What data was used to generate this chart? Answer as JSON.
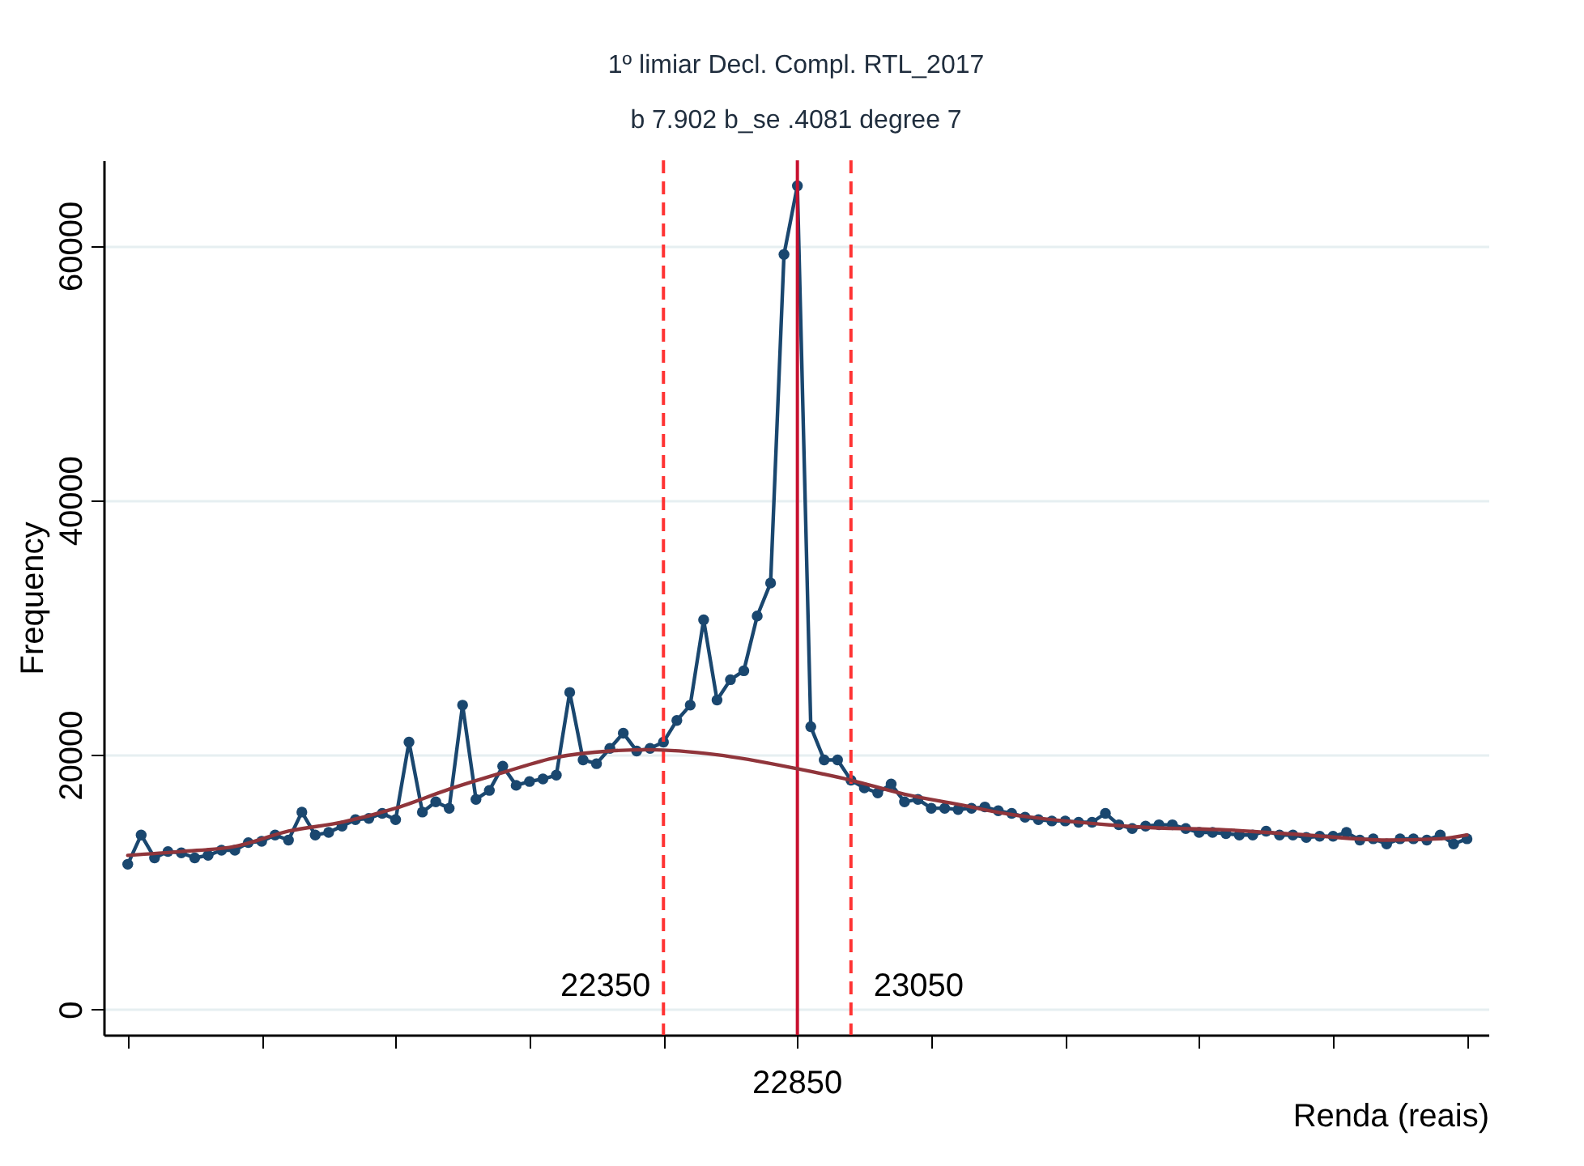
{
  "chart_data": {
    "type": "line",
    "title": "1º limiar  Decl. Compl.  RTL_2017",
    "subtitle": "b 7.902 b_se .4081 degree 7",
    "xlabel": "Renda (reais)",
    "ylabel": "Frequency",
    "x": [
      20350,
      20400,
      20450,
      20500,
      20550,
      20600,
      20650,
      20700,
      20750,
      20800,
      20850,
      20900,
      20950,
      21000,
      21050,
      21100,
      21150,
      21200,
      21250,
      21300,
      21350,
      21400,
      21450,
      21500,
      21550,
      21600,
      21650,
      21700,
      21750,
      21800,
      21850,
      21900,
      21950,
      22000,
      22050,
      22100,
      22150,
      22200,
      22250,
      22300,
      22350,
      22400,
      22450,
      22500,
      22550,
      22600,
      22650,
      22700,
      22750,
      22800,
      22850,
      22900,
      22950,
      23000,
      23050,
      23100,
      23150,
      23200,
      23250,
      23300,
      23350,
      23400,
      23450,
      23500,
      23550,
      23600,
      23650,
      23700,
      23750,
      23800,
      23850,
      23900,
      23950,
      24000,
      24050,
      24100,
      24150,
      24200,
      24250,
      24300,
      24350,
      24400,
      24450,
      24500,
      24550,
      24600,
      24650,
      24700,
      24750,
      24800,
      24850,
      24900,
      24950,
      25000,
      25050,
      25100,
      25150,
      25200,
      25250,
      25300,
      25350
    ],
    "series": [
      {
        "color": "#1a476f",
        "marker": "circle",
        "values": [
          11400,
          13700,
          11900,
          12400,
          12300,
          11900,
          12100,
          12500,
          12500,
          13100,
          13200,
          13700,
          13300,
          15500,
          13700,
          13900,
          14400,
          14900,
          15000,
          15400,
          14900,
          21000,
          15500,
          16300,
          15800,
          23900,
          16500,
          17200,
          19100,
          17600,
          17900,
          18100,
          18400,
          24900,
          19600,
          19300,
          20500,
          21700,
          20300,
          20500,
          21000,
          22700,
          23900,
          30600,
          24300,
          25900,
          26600,
          30900,
          33500,
          59300,
          64700,
          22200,
          19600,
          19600,
          18000,
          17400,
          17000,
          17700,
          16300,
          16500,
          15800,
          15800,
          15700,
          15800,
          15900,
          15600,
          15400,
          15100,
          14900,
          14800,
          14800,
          14700,
          14700,
          15400,
          14500,
          14200,
          14400,
          14500,
          14500,
          14200,
          13900,
          13900,
          13800,
          13700,
          13700,
          14000,
          13700,
          13700,
          13500,
          13600,
          13600,
          13900,
          13300,
          13400,
          13000,
          13400,
          13400,
          13300,
          13700,
          13000,
          13400
        ]
      },
      {
        "color": "#90353b",
        "marker": "none",
        "x": [
          20350,
          20550,
          20750,
          20950,
          21150,
          21350,
          21550,
          21750,
          21950,
          22150,
          22300,
          22550,
          22850,
          23050,
          23250,
          23450,
          23650,
          23850,
          24150,
          24450,
          24750,
          25050,
          25250,
          25350
        ],
        "values": [
          12100,
          12400,
          12800,
          14000,
          14700,
          15800,
          17300,
          18600,
          19800,
          20300,
          20400,
          20000,
          18900,
          18000,
          16900,
          16100,
          15300,
          14800,
          14300,
          14100,
          13700,
          13300,
          13400,
          13700
        ]
      }
    ],
    "xlim": [
      20260,
      25430
    ],
    "xticks": [
      {
        "value": 20350,
        "label": null
      },
      {
        "value": 20850,
        "label": null
      },
      {
        "value": 21350,
        "label": null
      },
      {
        "value": 21850,
        "label": null
      },
      {
        "value": 22350,
        "label": null
      },
      {
        "value": 22850,
        "label": null
      },
      {
        "value": 23350,
        "label": null
      },
      {
        "value": 23850,
        "label": null
      },
      {
        "value": 24350,
        "label": null
      },
      {
        "value": 24850,
        "label": null
      },
      {
        "value": 25350,
        "label": null
      }
    ],
    "ylim": [
      -2000,
      66700
    ],
    "yticks": [
      0,
      20000,
      40000,
      60000
    ],
    "grid": "y",
    "line_style": "solid",
    "tick_labels": "y",
    "ref_lines": [
      {
        "axis": "x",
        "value": 22350,
        "label": "22350",
        "color": "#ff3333",
        "line_style": "dashed"
      },
      {
        "axis": "x",
        "value": 23050,
        "label": "23050",
        "color": "#ff3333",
        "line_style": "dashed"
      },
      {
        "axis": "x",
        "value": 22850,
        "label": "22850",
        "color": "#c8102e",
        "line_style": "solid"
      }
    ]
  }
}
